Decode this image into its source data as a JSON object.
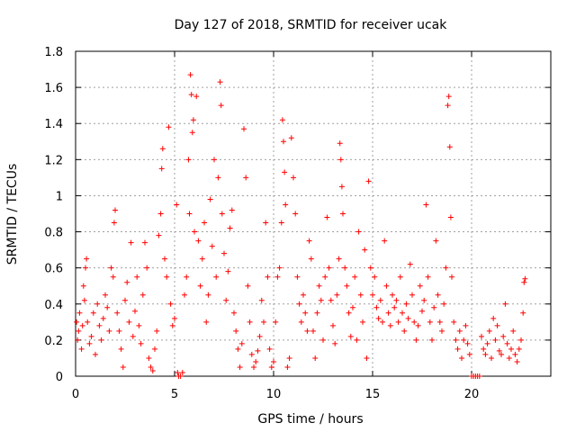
{
  "chart_data": {
    "type": "scatter",
    "title": "Day 127 of 2018, SRMTID for receiver ucak",
    "xlabel": "GPS time / hours",
    "ylabel": "SRMTID / TECUs",
    "xlim": [
      0,
      24
    ],
    "ylim": [
      0,
      1.8
    ],
    "xticks": [
      0,
      5,
      10,
      15,
      20
    ],
    "xtick_labels": [
      "0",
      "5",
      "10",
      "15",
      "20"
    ],
    "yticks": [
      0,
      0.2,
      0.4,
      0.6,
      0.8,
      1,
      1.2,
      1.4,
      1.6,
      1.8
    ],
    "ytick_labels": [
      "0",
      "0.2",
      "0.4",
      "0.6",
      "0.8",
      "1",
      "1.2",
      "1.4",
      "1.6",
      "1.8"
    ],
    "grid": true,
    "marker": "+",
    "color": "#ff0000",
    "series": [
      {
        "name": "SRMTID",
        "points": [
          [
            0.05,
            0.3
          ],
          [
            0.1,
            0.2
          ],
          [
            0.15,
            0.25
          ],
          [
            0.2,
            0.35
          ],
          [
            0.3,
            0.15
          ],
          [
            0.35,
            0.28
          ],
          [
            0.4,
            0.5
          ],
          [
            0.45,
            0.42
          ],
          [
            0.5,
            0.6
          ],
          [
            0.55,
            0.65
          ],
          [
            0.6,
            0.3
          ],
          [
            0.7,
            0.18
          ],
          [
            0.8,
            0.22
          ],
          [
            0.9,
            0.35
          ],
          [
            1.0,
            0.12
          ],
          [
            1.1,
            0.4
          ],
          [
            1.2,
            0.28
          ],
          [
            1.3,
            0.2
          ],
          [
            1.4,
            0.32
          ],
          [
            1.5,
            0.45
          ],
          [
            1.6,
            0.38
          ],
          [
            1.7,
            0.25
          ],
          [
            1.8,
            0.6
          ],
          [
            1.9,
            0.55
          ],
          [
            1.95,
            0.85
          ],
          [
            2.0,
            0.92
          ],
          [
            2.1,
            0.35
          ],
          [
            2.2,
            0.25
          ],
          [
            2.3,
            0.15
          ],
          [
            2.4,
            0.05
          ],
          [
            2.5,
            0.42
          ],
          [
            2.6,
            0.52
          ],
          [
            2.7,
            0.3
          ],
          [
            2.8,
            0.74
          ],
          [
            2.9,
            0.22
          ],
          [
            3.0,
            0.36
          ],
          [
            3.1,
            0.55
          ],
          [
            3.2,
            0.28
          ],
          [
            3.3,
            0.18
          ],
          [
            3.4,
            0.45
          ],
          [
            3.5,
            0.74
          ],
          [
            3.6,
            0.6
          ],
          [
            3.7,
            0.1
          ],
          [
            3.8,
            0.05
          ],
          [
            3.9,
            0.03
          ],
          [
            4.0,
            0.15
          ],
          [
            4.1,
            0.25
          ],
          [
            4.2,
            0.78
          ],
          [
            4.3,
            0.9
          ],
          [
            4.35,
            1.15
          ],
          [
            4.4,
            1.26
          ],
          [
            4.5,
            0.65
          ],
          [
            4.6,
            0.55
          ],
          [
            4.7,
            1.38
          ],
          [
            4.8,
            0.4
          ],
          [
            4.9,
            0.28
          ],
          [
            5.0,
            0.32
          ],
          [
            5.1,
            0.95
          ],
          [
            5.15,
            0.02
          ],
          [
            5.2,
            0.0
          ],
          [
            5.3,
            0.0
          ],
          [
            5.4,
            0.02
          ],
          [
            5.5,
            0.45
          ],
          [
            5.6,
            0.55
          ],
          [
            5.7,
            1.2
          ],
          [
            5.75,
            0.9
          ],
          [
            5.8,
            1.67
          ],
          [
            5.85,
            1.56
          ],
          [
            5.9,
            1.35
          ],
          [
            5.95,
            1.42
          ],
          [
            6.0,
            0.8
          ],
          [
            6.1,
            1.55
          ],
          [
            6.2,
            0.75
          ],
          [
            6.3,
            0.5
          ],
          [
            6.4,
            0.65
          ],
          [
            6.5,
            0.85
          ],
          [
            6.6,
            0.3
          ],
          [
            6.7,
            0.45
          ],
          [
            6.8,
            0.98
          ],
          [
            6.9,
            0.72
          ],
          [
            7.0,
            1.2
          ],
          [
            7.1,
            0.55
          ],
          [
            7.2,
            1.1
          ],
          [
            7.3,
            1.63
          ],
          [
            7.35,
            1.5
          ],
          [
            7.4,
            0.9
          ],
          [
            7.5,
            0.68
          ],
          [
            7.6,
            0.42
          ],
          [
            7.7,
            0.58
          ],
          [
            7.8,
            0.82
          ],
          [
            7.9,
            0.92
          ],
          [
            8.0,
            0.35
          ],
          [
            8.1,
            0.25
          ],
          [
            8.2,
            0.15
          ],
          [
            8.3,
            0.05
          ],
          [
            8.4,
            0.18
          ],
          [
            8.5,
            1.37
          ],
          [
            8.6,
            1.1
          ],
          [
            8.7,
            0.5
          ],
          [
            8.8,
            0.3
          ],
          [
            8.9,
            0.12
          ],
          [
            9.0,
            0.05
          ],
          [
            9.1,
            0.08
          ],
          [
            9.2,
            0.14
          ],
          [
            9.3,
            0.22
          ],
          [
            9.4,
            0.42
          ],
          [
            9.5,
            0.3
          ],
          [
            9.6,
            0.85
          ],
          [
            9.7,
            0.55
          ],
          [
            9.8,
            0.15
          ],
          [
            9.9,
            0.05
          ],
          [
            10.0,
            0.08
          ],
          [
            10.1,
            0.3
          ],
          [
            10.2,
            0.55
          ],
          [
            10.3,
            0.6
          ],
          [
            10.4,
            0.85
          ],
          [
            10.45,
            1.42
          ],
          [
            10.5,
            1.3
          ],
          [
            10.55,
            1.13
          ],
          [
            10.6,
            0.95
          ],
          [
            10.7,
            0.05
          ],
          [
            10.8,
            0.1
          ],
          [
            10.9,
            1.32
          ],
          [
            11.0,
            1.1
          ],
          [
            11.1,
            0.9
          ],
          [
            11.2,
            0.55
          ],
          [
            11.3,
            0.4
          ],
          [
            11.4,
            0.3
          ],
          [
            11.5,
            0.45
          ],
          [
            11.6,
            0.35
          ],
          [
            11.7,
            0.25
          ],
          [
            11.8,
            0.75
          ],
          [
            11.9,
            0.65
          ],
          [
            12.0,
            0.25
          ],
          [
            12.1,
            0.1
          ],
          [
            12.2,
            0.35
          ],
          [
            12.3,
            0.5
          ],
          [
            12.4,
            0.42
          ],
          [
            12.5,
            0.2
          ],
          [
            12.6,
            0.55
          ],
          [
            12.7,
            0.88
          ],
          [
            12.8,
            0.6
          ],
          [
            12.9,
            0.42
          ],
          [
            13.0,
            0.28
          ],
          [
            13.1,
            0.18
          ],
          [
            13.2,
            0.45
          ],
          [
            13.3,
            0.65
          ],
          [
            13.35,
            1.29
          ],
          [
            13.4,
            1.2
          ],
          [
            13.45,
            1.05
          ],
          [
            13.5,
            0.9
          ],
          [
            13.6,
            0.6
          ],
          [
            13.7,
            0.5
          ],
          [
            13.8,
            0.35
          ],
          [
            13.9,
            0.22
          ],
          [
            14.0,
            0.38
          ],
          [
            14.1,
            0.55
          ],
          [
            14.2,
            0.2
          ],
          [
            14.3,
            0.8
          ],
          [
            14.4,
            0.45
          ],
          [
            14.5,
            0.3
          ],
          [
            14.6,
            0.7
          ],
          [
            14.7,
            0.1
          ],
          [
            14.8,
            1.08
          ],
          [
            14.9,
            0.6
          ],
          [
            15.0,
            0.45
          ],
          [
            15.1,
            0.55
          ],
          [
            15.2,
            0.38
          ],
          [
            15.3,
            0.32
          ],
          [
            15.4,
            0.42
          ],
          [
            15.5,
            0.3
          ],
          [
            15.6,
            0.75
          ],
          [
            15.7,
            0.5
          ],
          [
            15.8,
            0.35
          ],
          [
            15.9,
            0.28
          ],
          [
            16.0,
            0.45
          ],
          [
            16.1,
            0.38
          ],
          [
            16.2,
            0.42
          ],
          [
            16.3,
            0.3
          ],
          [
            16.4,
            0.55
          ],
          [
            16.5,
            0.35
          ],
          [
            16.6,
            0.25
          ],
          [
            16.7,
            0.4
          ],
          [
            16.8,
            0.32
          ],
          [
            16.9,
            0.62
          ],
          [
            17.0,
            0.45
          ],
          [
            17.1,
            0.3
          ],
          [
            17.2,
            0.2
          ],
          [
            17.3,
            0.28
          ],
          [
            17.4,
            0.5
          ],
          [
            17.5,
            0.36
          ],
          [
            17.6,
            0.42
          ],
          [
            17.7,
            0.95
          ],
          [
            17.8,
            0.55
          ],
          [
            17.9,
            0.3
          ],
          [
            18.0,
            0.2
          ],
          [
            18.1,
            0.38
          ],
          [
            18.2,
            0.75
          ],
          [
            18.3,
            0.45
          ],
          [
            18.4,
            0.3
          ],
          [
            18.5,
            0.25
          ],
          [
            18.6,
            0.4
          ],
          [
            18.7,
            0.6
          ],
          [
            18.8,
            1.5
          ],
          [
            18.85,
            1.55
          ],
          [
            18.9,
            1.27
          ],
          [
            18.95,
            0.88
          ],
          [
            19.0,
            0.55
          ],
          [
            19.1,
            0.3
          ],
          [
            19.2,
            0.2
          ],
          [
            19.3,
            0.15
          ],
          [
            19.4,
            0.25
          ],
          [
            19.5,
            0.1
          ],
          [
            19.6,
            0.2
          ],
          [
            19.7,
            0.28
          ],
          [
            19.8,
            0.18
          ],
          [
            19.9,
            0.12
          ],
          [
            20.0,
            0.0
          ],
          [
            20.1,
            0.0
          ],
          [
            20.2,
            0.0
          ],
          [
            20.3,
            0.0
          ],
          [
            20.4,
            0.0
          ],
          [
            20.5,
            0.22
          ],
          [
            20.6,
            0.15
          ],
          [
            20.7,
            0.12
          ],
          [
            20.8,
            0.18
          ],
          [
            20.9,
            0.25
          ],
          [
            21.0,
            0.1
          ],
          [
            21.1,
            0.32
          ],
          [
            21.2,
            0.2
          ],
          [
            21.3,
            0.28
          ],
          [
            21.4,
            0.14
          ],
          [
            21.5,
            0.12
          ],
          [
            21.6,
            0.22
          ],
          [
            21.7,
            0.4
          ],
          [
            21.8,
            0.18
          ],
          [
            21.9,
            0.1
          ],
          [
            22.0,
            0.15
          ],
          [
            22.1,
            0.25
          ],
          [
            22.2,
            0.12
          ],
          [
            22.3,
            0.08
          ],
          [
            22.4,
            0.15
          ],
          [
            22.5,
            0.2
          ],
          [
            22.6,
            0.35
          ],
          [
            22.65,
            0.52
          ],
          [
            22.7,
            0.54
          ]
        ]
      }
    ]
  }
}
